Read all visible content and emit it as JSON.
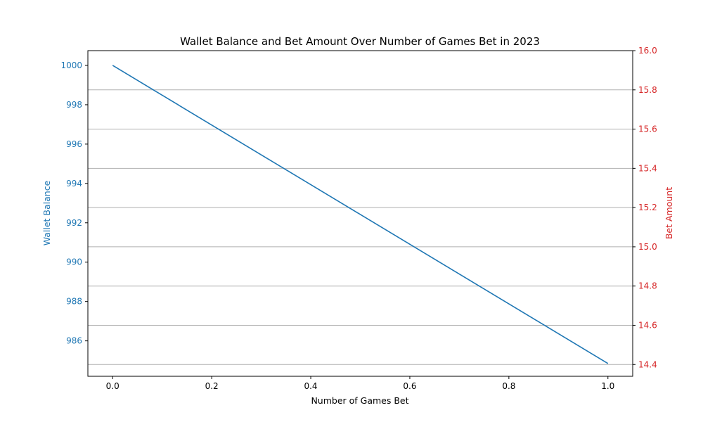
{
  "chart_data": {
    "type": "line",
    "title": "Wallet Balance and Bet Amount Over Number of Games Bet in 2023",
    "xlabel": "Number of Games Bet",
    "ylabel_left": "Wallet Balance",
    "ylabel_right": "Bet Amount",
    "xlim": [
      -0.05,
      1.05
    ],
    "ylim_left": [
      984.2,
      1000.75
    ],
    "ylim_right": [
      14.34,
      16.0
    ],
    "x_ticks": [
      "0.0",
      "0.2",
      "0.4",
      "0.6",
      "0.8",
      "1.0"
    ],
    "left_ticks": [
      "986",
      "988",
      "990",
      "992",
      "994",
      "996",
      "998",
      "1000"
    ],
    "right_ticks": [
      "14.4",
      "14.6",
      "14.8",
      "15.0",
      "15.2",
      "15.4",
      "15.6",
      "15.8",
      "16.0"
    ],
    "grid": "horizontal-right-axis",
    "series": [
      {
        "axis": "left",
        "color": "#1f77b4",
        "x": [
          0.0,
          1.0
        ],
        "y": [
          1000.0,
          984.85
        ]
      }
    ],
    "colors": {
      "left_axis": "#1f77b4",
      "right_axis": "#d62728",
      "grid": "#b0b0b0"
    }
  }
}
